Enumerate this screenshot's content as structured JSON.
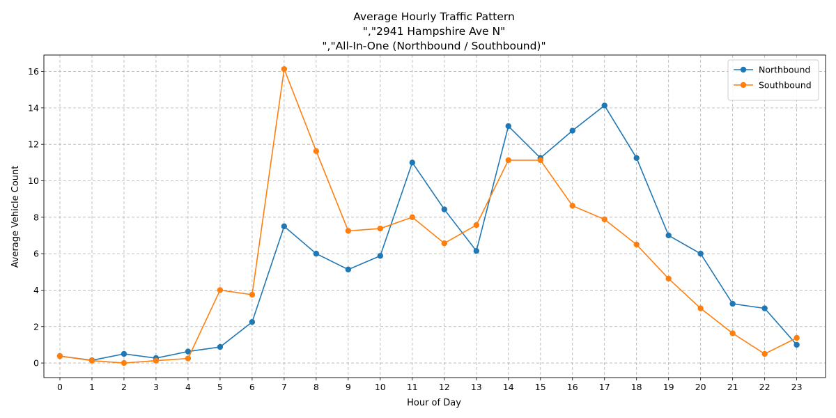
{
  "chart_data": {
    "type": "line",
    "title_lines": [
      "Average Hourly Traffic Pattern",
      "\",\"2941 Hampshire Ave N\"",
      "\",\"All-In-One (Northbound / Southbound)\""
    ],
    "xlabel": "Hour of Day",
    "ylabel": "Average Vehicle Count",
    "x": [
      0,
      1,
      2,
      3,
      4,
      5,
      6,
      7,
      8,
      9,
      10,
      11,
      12,
      13,
      14,
      15,
      16,
      17,
      18,
      19,
      20,
      21,
      22,
      23
    ],
    "xlim": [
      -0.5,
      23.9
    ],
    "ylim": [
      -0.8,
      16.9
    ],
    "yticks": [
      0,
      2,
      4,
      6,
      8,
      10,
      12,
      14,
      16
    ],
    "grid": true,
    "legend_position": "upper-right",
    "series": [
      {
        "name": "Northbound",
        "color": "#1f77b4",
        "values": [
          0.38,
          0.15,
          0.5,
          0.27,
          0.63,
          0.88,
          2.25,
          7.5,
          6.0,
          5.13,
          5.88,
          11.0,
          8.43,
          6.15,
          13.0,
          11.25,
          12.75,
          14.13,
          11.25,
          7.0,
          6.0,
          3.25,
          3.0,
          1.0
        ]
      },
      {
        "name": "Southbound",
        "color": "#ff7f0e",
        "values": [
          0.38,
          0.13,
          0.0,
          0.13,
          0.25,
          4.0,
          3.75,
          16.13,
          11.63,
          7.25,
          7.38,
          8.0,
          6.57,
          7.57,
          11.13,
          11.13,
          8.63,
          7.88,
          6.5,
          4.63,
          3.0,
          1.63,
          0.5,
          1.38
        ]
      }
    ]
  }
}
